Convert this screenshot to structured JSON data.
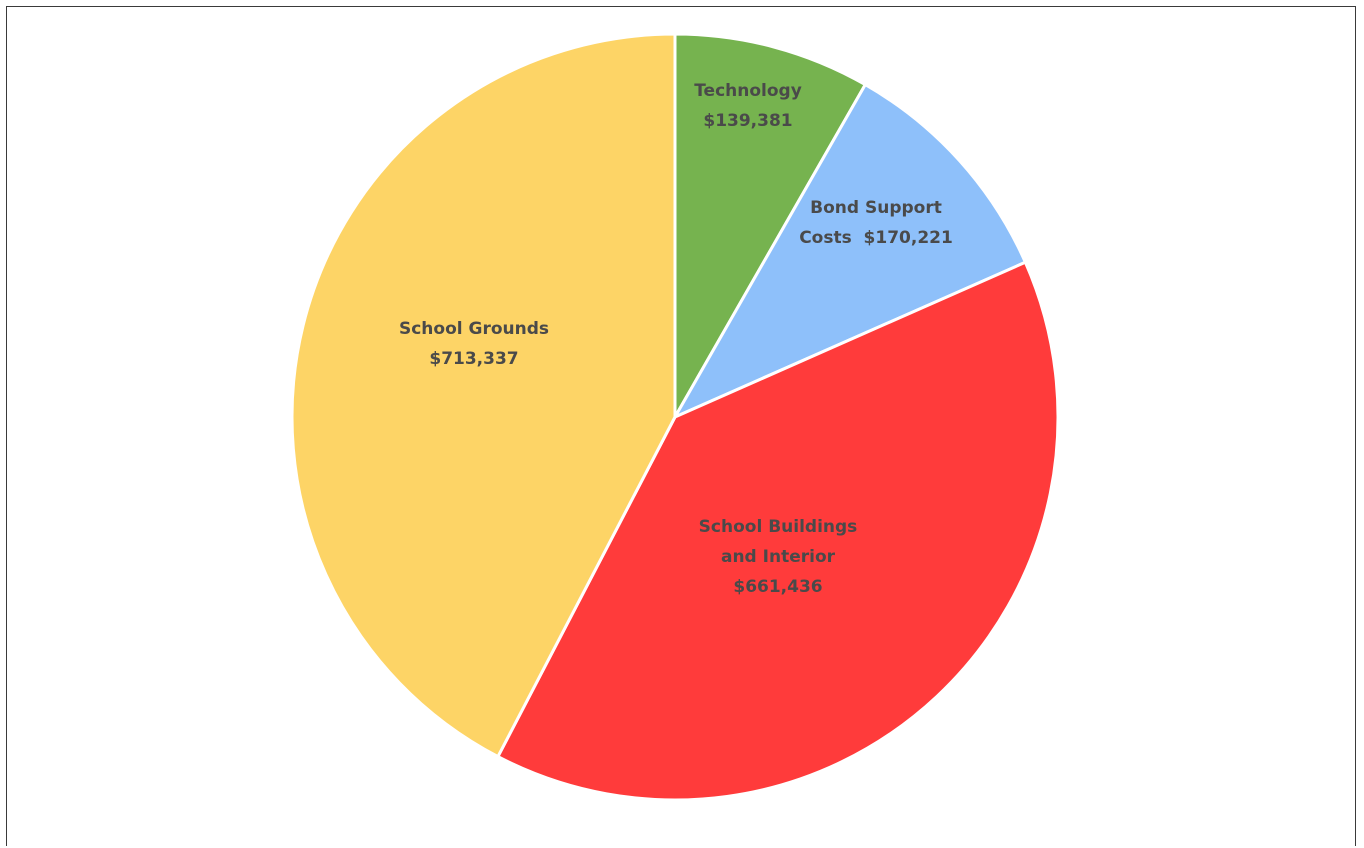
{
  "chart_data": {
    "type": "pie",
    "start_angle_deg": 0,
    "direction": "clockwise",
    "slices": [
      {
        "label_lines": [
          "Technology",
          "$139,381"
        ],
        "value": 139381,
        "color": "#76b34f"
      },
      {
        "label_lines": [
          "Bond Support",
          "Costs  $170,221"
        ],
        "value": 170221,
        "color": "#8ec0fa"
      },
      {
        "label_lines": [
          "School Buildings",
          "and Interior",
          "$661,436"
        ],
        "value": 661436,
        "color": "#ff3b3b"
      },
      {
        "label_lines": [
          "School Grounds",
          "$713,337"
        ],
        "value": 713337,
        "color": "#fdd466"
      }
    ]
  }
}
